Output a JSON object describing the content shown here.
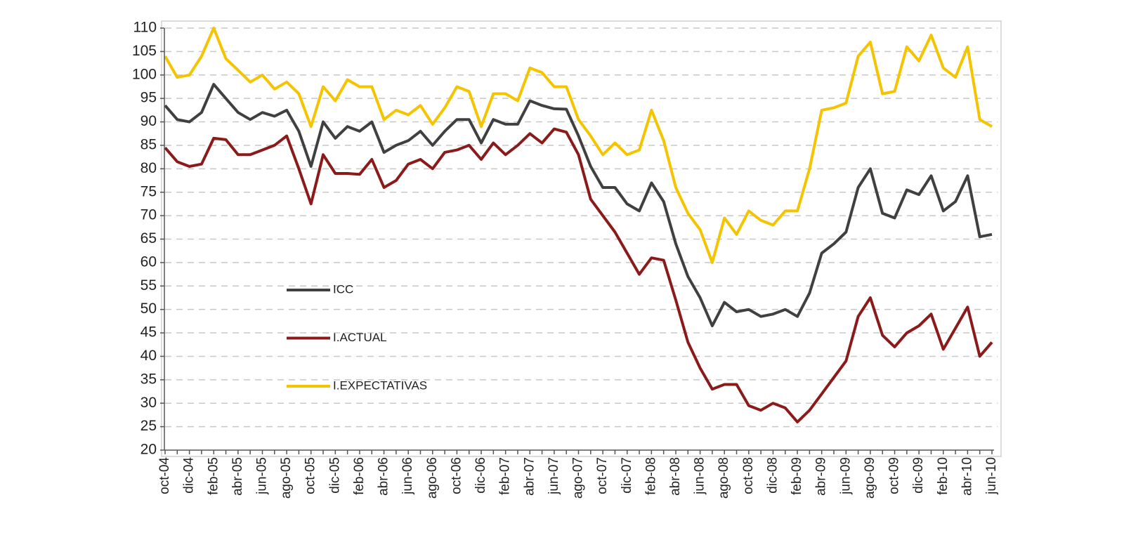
{
  "chart_data": {
    "type": "line",
    "categories": [
      "oct-04",
      null,
      "dic-04",
      null,
      "feb-05",
      null,
      "abr-05",
      null,
      "jun-05",
      null,
      "ago-05",
      null,
      "oct-05",
      null,
      "dic-05",
      null,
      "feb-06",
      null,
      "abr-06",
      null,
      "jun-06",
      null,
      "ago-06",
      null,
      "oct-06",
      null,
      "dic-06",
      null,
      "feb-07",
      null,
      "abr-07",
      null,
      "jun-07",
      null,
      "ago-07",
      null,
      "oct-07",
      null,
      "dic-07",
      null,
      "feb-08",
      null,
      "abr-08",
      null,
      "jun-08",
      null,
      "ago-08",
      null,
      "oct-08",
      null,
      "dic-08",
      null,
      "feb-09",
      null,
      "abr-09",
      null,
      "jun-09",
      null,
      "ago-09",
      null,
      "oct-09",
      null,
      "dic-09",
      null,
      "feb-10",
      null,
      "abr-10",
      null,
      "jun-10"
    ],
    "series": [
      {
        "name": "ICC",
        "color": "#404040",
        "values": [
          93.5,
          90.5,
          90,
          92,
          98,
          95,
          92,
          90.5,
          92,
          91.2,
          92.5,
          88,
          80.5,
          90,
          86.5,
          89,
          88,
          90,
          83.5,
          85,
          86,
          88,
          85,
          88,
          90.5,
          90.5,
          85.5,
          90.5,
          89.5,
          89.5,
          94.5,
          93.5,
          92.8,
          92.7,
          87,
          80.5,
          76,
          76,
          72.5,
          71,
          77,
          73,
          64,
          57,
          52.5,
          46.5,
          51.5,
          49.5,
          50,
          48.5,
          49,
          50,
          48.5,
          53.5,
          62,
          64,
          66.5,
          76,
          80,
          70.5,
          69.5,
          75.5,
          74.5,
          78.5,
          71,
          73,
          78.5,
          65.5,
          66
        ]
      },
      {
        "name": "I.ACTUAL",
        "color": "#8b1a1a",
        "values": [
          84.5,
          81.5,
          80.5,
          81,
          86.5,
          86.2,
          83,
          83,
          84,
          85,
          87,
          80,
          72.5,
          83,
          79,
          79,
          78.8,
          82,
          76,
          77.5,
          81,
          82,
          80,
          83.5,
          84,
          85,
          82,
          85.5,
          83,
          85,
          87.5,
          85.5,
          88.5,
          87.8,
          83,
          73.5,
          70,
          66.5,
          62,
          57.5,
          61,
          60.5,
          52,
          43,
          37.5,
          33,
          34,
          34,
          29.5,
          28.5,
          30,
          29,
          26,
          28.5,
          32,
          35.5,
          39,
          48.5,
          52.5,
          44.5,
          42,
          45,
          46.5,
          49,
          41.5,
          46,
          50.5,
          40,
          43
        ]
      },
      {
        "name": "I.EXPECTATIVAS",
        "color": "#f5c400",
        "values": [
          104,
          99.5,
          100,
          104,
          110,
          103.5,
          101,
          98.5,
          100,
          97,
          98.5,
          96,
          89,
          97.5,
          94.5,
          99,
          97.5,
          97.5,
          90.5,
          92.5,
          91.5,
          93.5,
          89.5,
          93,
          97.5,
          96.5,
          89,
          96,
          96,
          94.5,
          101.5,
          100.5,
          97.5,
          97.5,
          90.5,
          87,
          83,
          85.5,
          83,
          84,
          92.5,
          86,
          76,
          70.5,
          67,
          60,
          69.5,
          66,
          71,
          69,
          68,
          71,
          71,
          80,
          92.5,
          93,
          94,
          104,
          107,
          96,
          96.5,
          106,
          103,
          108.5,
          101.5,
          99.5,
          106,
          90.5,
          89
        ]
      }
    ],
    "ylim": [
      20,
      110
    ],
    "yticks": [
      20,
      25,
      30,
      35,
      40,
      45,
      50,
      55,
      60,
      65,
      70,
      75,
      80,
      85,
      90,
      95,
      100,
      105,
      110
    ],
    "grid": true,
    "legend_position": "left"
  }
}
